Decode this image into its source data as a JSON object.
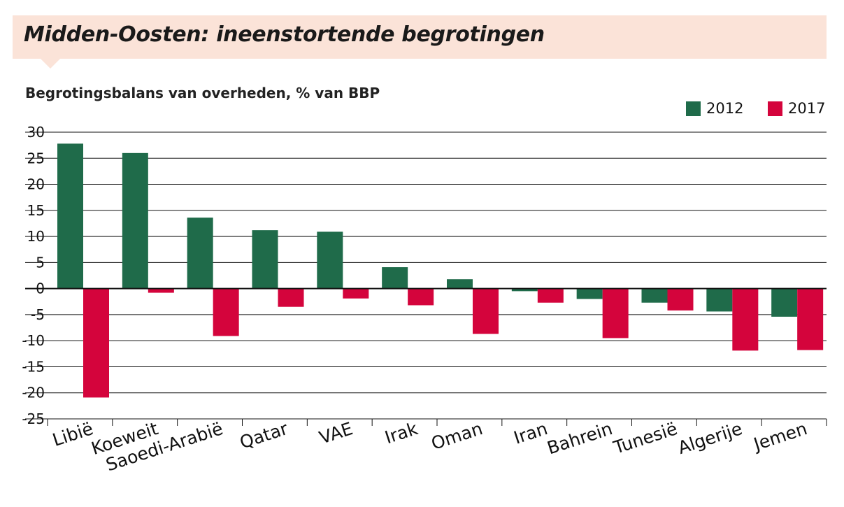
{
  "header": {
    "title": "Midden-Oosten: ineenstortende begrotingen",
    "subtitle": "Begrotingsbalans van overheden, % van BBP"
  },
  "colors": {
    "s2012": "#1f6b4a",
    "s2017": "#d4043c",
    "banner": "#fbe3d8"
  },
  "chart_data": {
    "type": "bar",
    "title": "Midden-Oosten: ineenstortende begrotingen",
    "subtitle": "Begrotingsbalans van overheden, % van BBP",
    "categories": [
      "Libië",
      "Koeweit",
      "Saoedi-Arabië",
      "Qatar",
      "VAE",
      "Irak",
      "Oman",
      "Iran",
      "Bahrein",
      "Tunesië",
      "Algerije",
      "Jemen"
    ],
    "series": [
      {
        "name": "2012",
        "color": "#1f6b4a",
        "values": [
          27.8,
          26.0,
          13.6,
          11.2,
          10.9,
          4.1,
          1.8,
          -0.5,
          -2.0,
          -2.7,
          -4.4,
          -5.4
        ]
      },
      {
        "name": "2017",
        "color": "#d4043c",
        "values": [
          -20.9,
          -0.8,
          -9.1,
          -3.5,
          -1.9,
          -3.2,
          -8.7,
          -2.7,
          -9.5,
          -4.2,
          -11.9,
          -11.8
        ]
      }
    ],
    "ylim": [
      -25,
      30
    ],
    "yticks": [
      30,
      25,
      20,
      15,
      10,
      5,
      0,
      -5,
      -10,
      -15,
      -20,
      -25
    ],
    "legend_position": "top-right",
    "grid": true
  }
}
